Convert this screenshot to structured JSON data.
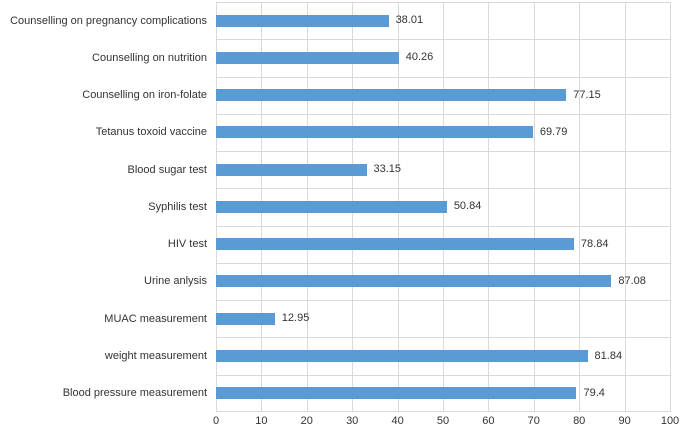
{
  "chart_data": {
    "type": "bar",
    "orientation": "horizontal",
    "title": "",
    "xlabel": "",
    "ylabel": "",
    "categories": [
      "Counselling on pregnancy complications",
      "Counselling on nutrition",
      "Counselling on iron-folate",
      "Tetanus toxoid vaccine",
      "Blood sugar test",
      "Syphilis test",
      "HIV test",
      "Urine anlysis",
      "MUAC measurement",
      "weight measurement",
      "Blood pressure measurement"
    ],
    "values": [
      38.01,
      40.26,
      77.15,
      69.79,
      33.15,
      50.84,
      78.84,
      87.08,
      12.95,
      81.84,
      79.4
    ],
    "value_labels": [
      "38.01",
      "40.26",
      "77.15",
      "69.79",
      "33.15",
      "50.84",
      "78.84",
      "87.08",
      "12.95",
      "81.84",
      "79.4"
    ],
    "xlim": [
      0,
      100
    ],
    "x_ticks": [
      "0",
      "10",
      "20",
      "30",
      "40",
      "50",
      "60",
      "70",
      "80",
      "90",
      "100"
    ],
    "grid": "both",
    "legend": "none",
    "colors": {
      "bar": "#5b9bd5",
      "gridline": "#d9d9d9",
      "text": "#333333",
      "background": "#ffffff"
    }
  }
}
